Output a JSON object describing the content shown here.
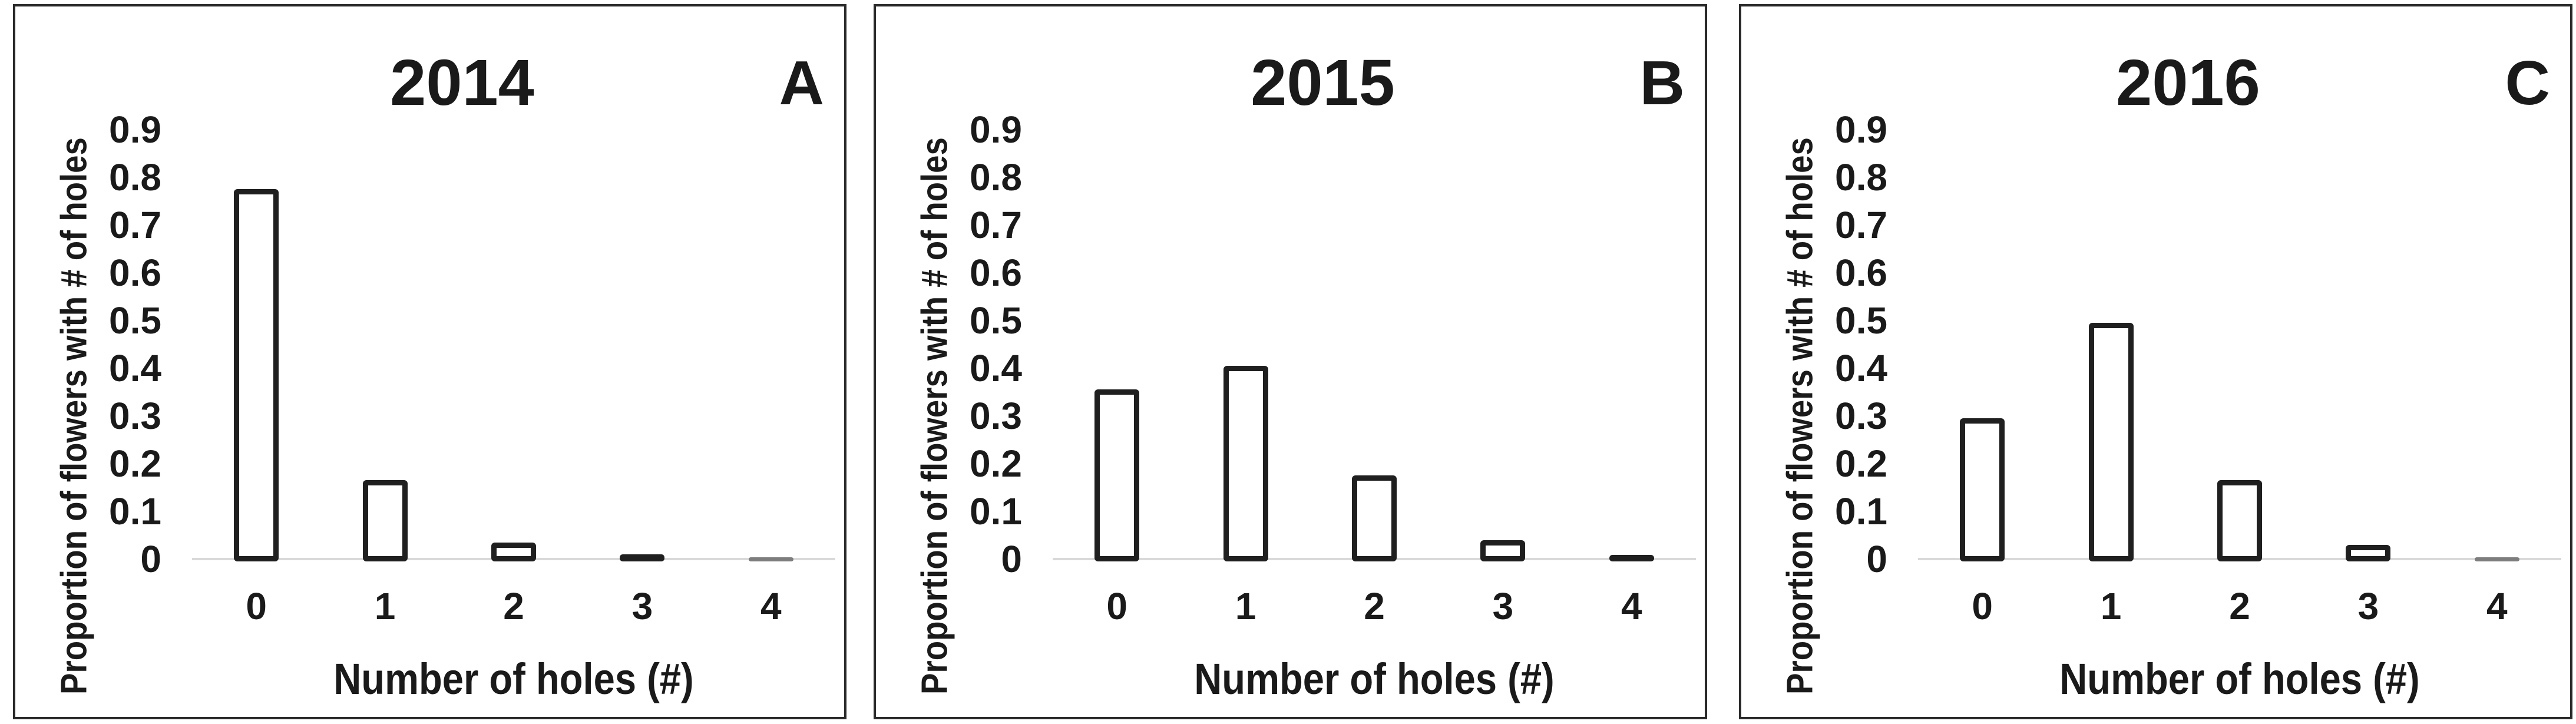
{
  "figure": {
    "background": "#ffffff",
    "panel_count": 3
  },
  "colors": {
    "text": "#1a1a1a",
    "panel_border": "#2a2a2a",
    "bar_outline": "#1f1f1f",
    "bar_fill": "#ffffff",
    "bar_gray": "#7d7d7d",
    "baseline": "#d9d9d9"
  },
  "chart_data": [
    {
      "type": "bar",
      "title": "2014",
      "panel_label": "A",
      "xlabel": "Number of holes (#)",
      "ylabel": "Proportion of flowers with # of holes",
      "categories": [
        "0",
        "1",
        "2",
        "3",
        "4"
      ],
      "values": [
        0.78,
        0.17,
        0.04,
        0.015,
        0.005
      ],
      "bar_styles": [
        "outline",
        "outline",
        "outline",
        "black",
        "gray"
      ],
      "ylim": [
        0,
        0.9
      ],
      "yticks": [
        "0.9",
        "0.8",
        "0.7",
        "0.6",
        "0.5",
        "0.4",
        "0.3",
        "0.2",
        "0.1",
        "0"
      ],
      "grid": false,
      "legend": false
    },
    {
      "type": "bar",
      "title": "2015",
      "panel_label": "B",
      "xlabel": "Number of holes (#)",
      "ylabel": "Proportion of flowers with # of holes",
      "categories": [
        "0",
        "1",
        "2",
        "3",
        "4"
      ],
      "values": [
        0.36,
        0.41,
        0.18,
        0.045,
        0.013
      ],
      "bar_styles": [
        "outline",
        "outline",
        "outline",
        "outline",
        "black"
      ],
      "ylim": [
        0,
        0.9
      ],
      "yticks": [
        "0.9",
        "0.8",
        "0.7",
        "0.6",
        "0.5",
        "0.4",
        "0.3",
        "0.2",
        "0.1",
        "0"
      ],
      "grid": false,
      "legend": false
    },
    {
      "type": "bar",
      "title": "2016",
      "panel_label": "C",
      "xlabel": "Number of holes (#)",
      "ylabel": "Proportion of flowers with # of holes",
      "categories": [
        "0",
        "1",
        "2",
        "3",
        "4"
      ],
      "values": [
        0.3,
        0.5,
        0.17,
        0.035,
        0.006
      ],
      "bar_styles": [
        "outline",
        "outline",
        "outline",
        "outline",
        "gray"
      ],
      "ylim": [
        0,
        0.9
      ],
      "yticks": [
        "0.9",
        "0.8",
        "0.7",
        "0.6",
        "0.5",
        "0.4",
        "0.3",
        "0.2",
        "0.1",
        "0"
      ],
      "grid": false,
      "legend": false
    }
  ]
}
